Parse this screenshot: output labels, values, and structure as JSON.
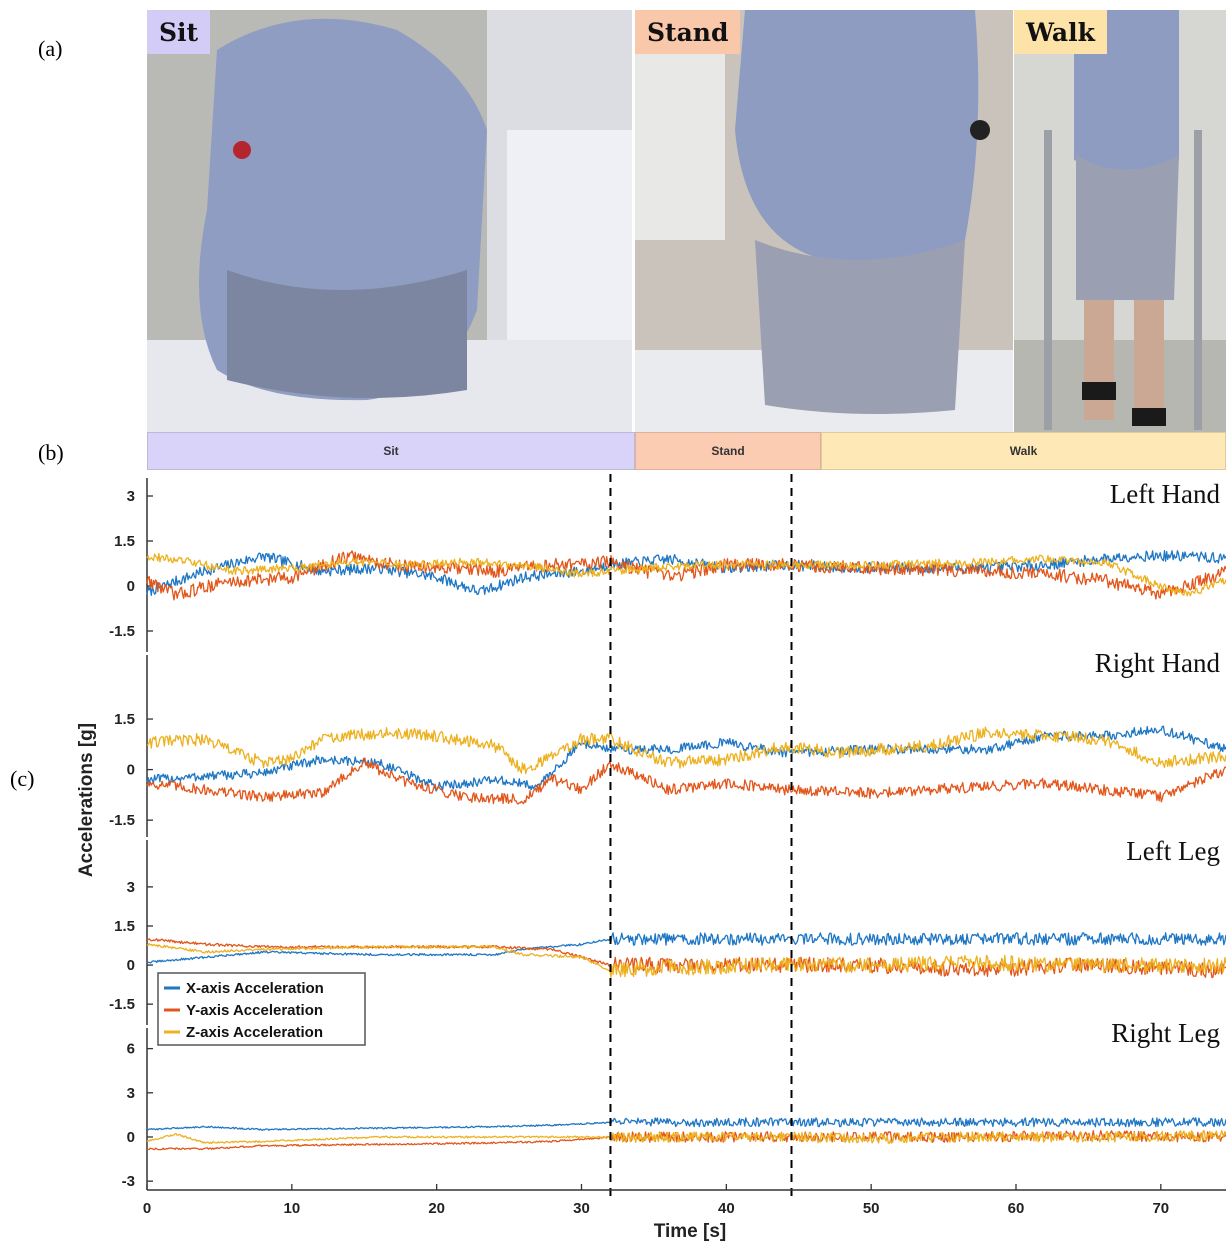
{
  "panels": {
    "a": "(a)",
    "b": "(b)",
    "c": "(c)"
  },
  "photos": [
    {
      "label": "Sit",
      "tag_color": "#d3ccf7"
    },
    {
      "label": "Stand",
      "tag_color": "#f9c8ab"
    },
    {
      "label": "Walk",
      "tag_color": "#fde3a7"
    }
  ],
  "segments": [
    {
      "label": "Sit",
      "start": 0,
      "end": 33.5,
      "color": "#d9d2f9"
    },
    {
      "label": "Stand",
      "start": 33.5,
      "end": 46.3,
      "color": "#fbcbb2"
    },
    {
      "label": "Walk",
      "start": 46.3,
      "end": 74.5,
      "color": "#fde8b6"
    }
  ],
  "chart_data": {
    "type": "line",
    "xlabel": "Time [s]",
    "ylabel": "Accelerations [g]",
    "xlim": [
      0,
      74.5
    ],
    "xticks": [
      0,
      10,
      20,
      30,
      40,
      50,
      60,
      70
    ],
    "transitions": [
      32,
      44.5
    ],
    "legend": {
      "position": "bottom-left of Left Leg panel",
      "entries": [
        "X-axis Acceleration",
        "Y-axis Acceleration",
        "Z-axis Acceleration"
      ]
    },
    "colors": {
      "x": "#1f77c4",
      "y": "#e2561b",
      "z": "#edb120"
    },
    "panels": [
      {
        "name": "Left Hand",
        "ylim": [
          -2.2,
          3.6
        ],
        "yticks": [
          3,
          1.5,
          0,
          -1.5
        ],
        "series": [
          {
            "name": "X-axis Acceleration",
            "noise": 0.18,
            "points": [
              [
                0,
                -0.2
              ],
              [
                4,
                0.5
              ],
              [
                8,
                1.0
              ],
              [
                12,
                0.5
              ],
              [
                16,
                0.6
              ],
              [
                20,
                0.3
              ],
              [
                23,
                -0.2
              ],
              [
                26,
                0.3
              ],
              [
                30,
                0.5
              ],
              [
                32,
                0.7
              ],
              [
                36,
                0.9
              ],
              [
                40,
                0.6
              ],
              [
                44,
                0.7
              ],
              [
                50,
                0.6
              ],
              [
                58,
                0.6
              ],
              [
                62,
                0.7
              ],
              [
                68,
                1.0
              ],
              [
                72,
                1.0
              ],
              [
                74.5,
                0.9
              ]
            ]
          },
          {
            "name": "Y-axis Acceleration",
            "noise": 0.22,
            "points": [
              [
                0,
                0.2
              ],
              [
                2,
                -0.3
              ],
              [
                5,
                0.1
              ],
              [
                10,
                0.3
              ],
              [
                14,
                1.0
              ],
              [
                17,
                0.7
              ],
              [
                20,
                0.6
              ],
              [
                24,
                0.5
              ],
              [
                28,
                0.7
              ],
              [
                32,
                0.8
              ],
              [
                36,
                0.3
              ],
              [
                40,
                0.7
              ],
              [
                44,
                0.7
              ],
              [
                50,
                0.6
              ],
              [
                58,
                0.5
              ],
              [
                62,
                0.4
              ],
              [
                66,
                0.2
              ],
              [
                70,
                -0.3
              ],
              [
                74.5,
                0.5
              ]
            ]
          },
          {
            "name": "Z-axis Acceleration",
            "noise": 0.14,
            "points": [
              [
                0,
                1.0
              ],
              [
                3,
                0.8
              ],
              [
                6,
                0.5
              ],
              [
                10,
                0.6
              ],
              [
                14,
                0.8
              ],
              [
                18,
                0.7
              ],
              [
                22,
                0.8
              ],
              [
                26,
                0.7
              ],
              [
                30,
                0.4
              ],
              [
                32,
                0.5
              ],
              [
                38,
                0.7
              ],
              [
                44,
                0.7
              ],
              [
                50,
                0.7
              ],
              [
                58,
                0.8
              ],
              [
                62,
                0.9
              ],
              [
                66,
                0.8
              ],
              [
                70,
                0.0
              ],
              [
                72,
                -0.3
              ],
              [
                74.5,
                0.2
              ]
            ]
          }
        ]
      },
      {
        "name": "Right Hand",
        "ylim": [
          -2.0,
          3.4
        ],
        "yticks": [
          1.5,
          0,
          -1.5
        ],
        "series": [
          {
            "name": "X-axis Acceleration",
            "noise": 0.14,
            "points": [
              [
                0,
                -0.3
              ],
              [
                4,
                -0.2
              ],
              [
                8,
                -0.1
              ],
              [
                12,
                0.3
              ],
              [
                16,
                0.2
              ],
              [
                20,
                -0.5
              ],
              [
                24,
                -0.3
              ],
              [
                27,
                -0.5
              ],
              [
                30,
                0.8
              ],
              [
                32,
                0.6
              ],
              [
                36,
                0.6
              ],
              [
                40,
                0.8
              ],
              [
                44,
                0.5
              ],
              [
                50,
                0.6
              ],
              [
                58,
                0.6
              ],
              [
                62,
                1.0
              ],
              [
                66,
                1.0
              ],
              [
                70,
                1.2
              ],
              [
                74.5,
                0.6
              ]
            ]
          },
          {
            "name": "Y-axis Acceleration",
            "noise": 0.16,
            "points": [
              [
                0,
                -0.4
              ],
              [
                4,
                -0.6
              ],
              [
                8,
                -0.8
              ],
              [
                12,
                -0.7
              ],
              [
                15,
                0.2
              ],
              [
                18,
                -0.4
              ],
              [
                22,
                -0.8
              ],
              [
                26,
                -0.9
              ],
              [
                28,
                -0.3
              ],
              [
                30,
                -0.6
              ],
              [
                32,
                0.2
              ],
              [
                36,
                -0.6
              ],
              [
                40,
                -0.4
              ],
              [
                44,
                -0.6
              ],
              [
                50,
                -0.7
              ],
              [
                58,
                -0.5
              ],
              [
                62,
                -0.4
              ],
              [
                66,
                -0.6
              ],
              [
                70,
                -0.8
              ],
              [
                74.5,
                0.0
              ]
            ]
          },
          {
            "name": "Z-axis Acceleration",
            "noise": 0.18,
            "points": [
              [
                0,
                0.8
              ],
              [
                4,
                0.9
              ],
              [
                8,
                0.2
              ],
              [
                10,
                0.3
              ],
              [
                12,
                0.9
              ],
              [
                16,
                1.1
              ],
              [
                20,
                1.0
              ],
              [
                24,
                0.7
              ],
              [
                26,
                0.0
              ],
              [
                28,
                0.4
              ],
              [
                30,
                0.9
              ],
              [
                32,
                0.9
              ],
              [
                36,
                0.2
              ],
              [
                40,
                0.3
              ],
              [
                44,
                0.7
              ],
              [
                48,
                0.5
              ],
              [
                54,
                0.7
              ],
              [
                58,
                1.1
              ],
              [
                62,
                1.0
              ],
              [
                66,
                0.9
              ],
              [
                70,
                0.2
              ],
              [
                74.5,
                0.4
              ]
            ]
          }
        ]
      },
      {
        "name": "Left Leg",
        "ylim": [
          -2.3,
          4.8
        ],
        "yticks": [
          3,
          1.5,
          0,
          -1.5
        ],
        "series": [
          {
            "name": "X-axis Acceleration",
            "noise": 0.04,
            "points": [
              [
                0,
                0.1
              ],
              [
                4,
                0.3
              ],
              [
                8,
                0.5
              ],
              [
                16,
                0.4
              ],
              [
                24,
                0.4
              ],
              [
                26,
                0.6
              ],
              [
                30,
                0.8
              ],
              [
                32,
                1.0
              ],
              [
                36,
                1.0
              ],
              [
                44,
                1.0
              ],
              [
                50,
                1.0
              ],
              [
                58,
                1.0
              ],
              [
                64,
                1.0
              ],
              [
                74.5,
                1.0
              ]
            ]
          },
          {
            "name": "Y-axis Acceleration",
            "noise": 0.05,
            "points": [
              [
                0,
                1.0
              ],
              [
                4,
                0.8
              ],
              [
                8,
                0.7
              ],
              [
                16,
                0.7
              ],
              [
                24,
                0.7
              ],
              [
                28,
                0.6
              ],
              [
                32,
                0.0
              ],
              [
                36,
                0.0
              ],
              [
                44,
                0.0
              ],
              [
                50,
                0.0
              ],
              [
                58,
                -0.2
              ],
              [
                64,
                0.0
              ],
              [
                74.5,
                -0.2
              ]
            ]
          },
          {
            "name": "Z-axis Acceleration",
            "noise": 0.05,
            "points": [
              [
                0,
                0.8
              ],
              [
                4,
                0.5
              ],
              [
                8,
                0.6
              ],
              [
                16,
                0.7
              ],
              [
                24,
                0.7
              ],
              [
                26,
                0.4
              ],
              [
                30,
                0.3
              ],
              [
                32,
                -0.2
              ],
              [
                36,
                -0.1
              ],
              [
                44,
                0.0
              ],
              [
                50,
                0.0
              ],
              [
                58,
                0.1
              ],
              [
                64,
                0.0
              ],
              [
                74.5,
                0.0
              ]
            ]
          }
        ]
      },
      {
        "name": "Right Leg",
        "ylim": [
          -3.6,
          7.4
        ],
        "yticks": [
          6,
          3,
          0,
          -3
        ],
        "series": [
          {
            "name": "X-axis Acceleration",
            "noise": 0.05,
            "points": [
              [
                0,
                0.5
              ],
              [
                4,
                0.7
              ],
              [
                8,
                0.5
              ],
              [
                16,
                0.6
              ],
              [
                24,
                0.7
              ],
              [
                28,
                0.8
              ],
              [
                32,
                1.0
              ],
              [
                36,
                1.0
              ],
              [
                44,
                1.0
              ],
              [
                50,
                1.0
              ],
              [
                58,
                1.0
              ],
              [
                64,
                1.0
              ],
              [
                74.5,
                1.0
              ]
            ]
          },
          {
            "name": "Y-axis Acceleration",
            "noise": 0.06,
            "points": [
              [
                0,
                -0.8
              ],
              [
                4,
                -0.8
              ],
              [
                8,
                -0.6
              ],
              [
                16,
                -0.5
              ],
              [
                24,
                -0.4
              ],
              [
                28,
                -0.3
              ],
              [
                32,
                0.0
              ],
              [
                36,
                0.0
              ],
              [
                44,
                0.0
              ],
              [
                50,
                0.0
              ],
              [
                58,
                0.0
              ],
              [
                64,
                0.1
              ],
              [
                74.5,
                0.0
              ]
            ]
          },
          {
            "name": "Z-axis Acceleration",
            "noise": 0.06,
            "points": [
              [
                0,
                -0.3
              ],
              [
                2,
                0.2
              ],
              [
                4,
                -0.4
              ],
              [
                8,
                -0.3
              ],
              [
                16,
                0.0
              ],
              [
                24,
                0.0
              ],
              [
                28,
                0.0
              ],
              [
                32,
                0.0
              ],
              [
                36,
                0.0
              ],
              [
                44,
                0.0
              ],
              [
                50,
                -0.1
              ],
              [
                58,
                0.0
              ],
              [
                64,
                0.0
              ],
              [
                74.5,
                0.1
              ]
            ]
          }
        ]
      }
    ]
  }
}
